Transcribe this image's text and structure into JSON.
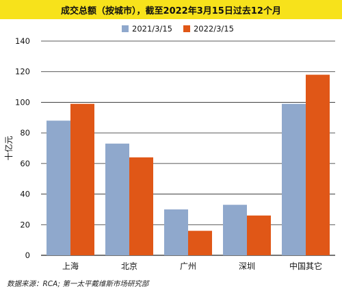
{
  "title": "成交总额（按城市），截至2022年3月15日过去12个月",
  "source": "数据来源：RCA; 第一太平戴维斯市场研究部",
  "colors": {
    "title_bg": "#f7e21b",
    "series_2021": "#8fa8cc",
    "series_2022": "#e05717",
    "grid": "#222222"
  },
  "chart_data": {
    "type": "bar",
    "categories": [
      "上海",
      "北京",
      "广州",
      "深圳",
      "中国其它"
    ],
    "series": [
      {
        "name": "2021/3/15",
        "values": [
          88,
          73,
          30,
          33,
          99
        ]
      },
      {
        "name": "2022/3/15",
        "values": [
          99,
          64,
          16,
          26,
          118
        ]
      }
    ],
    "ylabel": "十亿元",
    "ylim": [
      0,
      140
    ],
    "yticks": [
      0,
      20,
      40,
      60,
      80,
      100,
      120,
      140
    ],
    "grid": true,
    "legend": "top"
  }
}
